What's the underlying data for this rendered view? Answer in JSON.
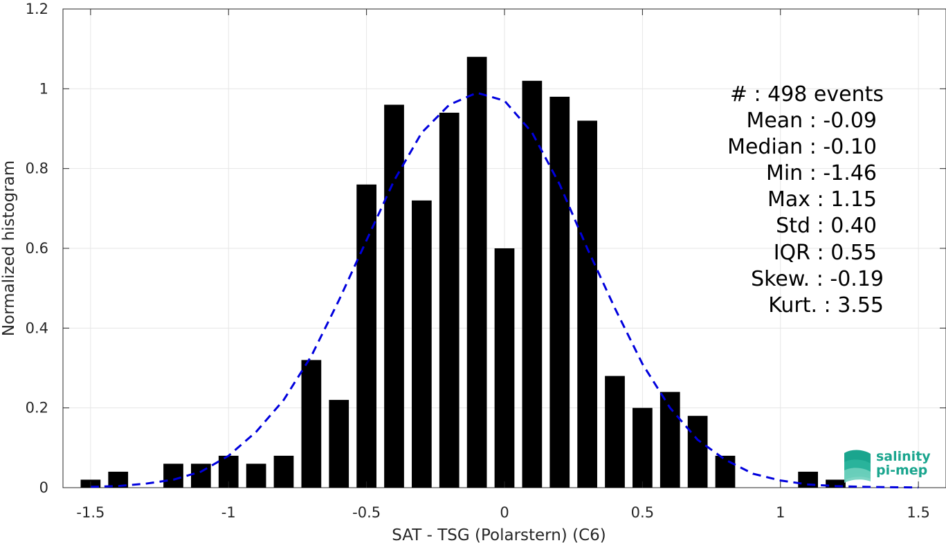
{
  "chart_data": {
    "type": "bar",
    "xlabel": "SAT - TSG (Polarstern) (C6)",
    "ylabel": "Normalized histogram",
    "xlim": [
      -1.6,
      1.6
    ],
    "ylim": [
      0,
      1.2
    ],
    "xticks": [
      -1.5,
      -1,
      -0.5,
      0,
      0.5,
      1,
      1.5
    ],
    "xtick_labels": [
      "-1.5",
      "-1",
      "-0.5",
      "0",
      "0.5",
      "1",
      "1.5"
    ],
    "yticks": [
      0,
      0.2,
      0.4,
      0.6,
      0.8,
      1,
      1.2
    ],
    "ytick_labels": [
      "0",
      "0.2",
      "0.4",
      "0.6",
      "0.8",
      "1",
      "1.2"
    ],
    "grid": true,
    "bar_width": 0.072,
    "bars": {
      "x": [
        -1.5,
        -1.4,
        -1.2,
        -1.1,
        -1.0,
        -0.9,
        -0.8,
        -0.7,
        -0.6,
        -0.5,
        -0.4,
        -0.3,
        -0.2,
        -0.1,
        0.0,
        0.1,
        0.2,
        0.3,
        0.4,
        0.5,
        0.6,
        0.7,
        0.8,
        1.1,
        1.2
      ],
      "values": [
        0.02,
        0.04,
        0.06,
        0.06,
        0.08,
        0.06,
        0.08,
        0.32,
        0.22,
        0.76,
        0.96,
        0.72,
        0.94,
        1.08,
        0.6,
        1.02,
        0.98,
        0.92,
        0.28,
        0.2,
        0.24,
        0.18,
        0.08,
        0.04,
        0.02
      ],
      "color": "#000000"
    },
    "fit_curve": {
      "style": "dashed",
      "color": "#0000dd",
      "x": [
        -1.5,
        -1.4,
        -1.3,
        -1.2,
        -1.1,
        -1.0,
        -0.9,
        -0.8,
        -0.7,
        -0.6,
        -0.5,
        -0.4,
        -0.3,
        -0.2,
        -0.1,
        0.0,
        0.1,
        0.2,
        0.3,
        0.4,
        0.5,
        0.6,
        0.7,
        0.8,
        0.9,
        1.0,
        1.1,
        1.2,
        1.3,
        1.4,
        1.5
      ],
      "y": [
        0.002,
        0.004,
        0.01,
        0.02,
        0.04,
        0.08,
        0.14,
        0.22,
        0.33,
        0.47,
        0.62,
        0.77,
        0.89,
        0.96,
        0.99,
        0.97,
        0.89,
        0.76,
        0.6,
        0.45,
        0.31,
        0.2,
        0.12,
        0.07,
        0.035,
        0.018,
        0.008,
        0.004,
        0.002,
        0.001,
        0.0005
      ]
    },
    "stats": [
      "#  : 498 events",
      "Mean : -0.09",
      "Median : -0.10",
      "Min : -1.46",
      "Max : 1.15",
      "Std : 0.40",
      "IQR : 0.55",
      "Skew. : -0.19",
      "Kurt. : 3.55"
    ]
  },
  "logo": {
    "line1": "salinity",
    "line2": "pi-mep",
    "colors": [
      "#1aa58e",
      "#2bb59c",
      "#6fd0be"
    ]
  }
}
